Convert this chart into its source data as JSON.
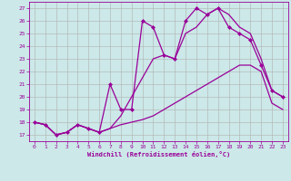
{
  "background_color": "#cce8e8",
  "grid_color": "#b0b0b0",
  "line_color": "#990099",
  "xlabel": "Windchill (Refroidissement éolien,°C)",
  "xlim_min": -0.5,
  "xlim_max": 23.5,
  "ylim_min": 16.5,
  "ylim_max": 27.5,
  "yticks": [
    17,
    18,
    19,
    20,
    21,
    22,
    23,
    24,
    25,
    26,
    27
  ],
  "xticks": [
    0,
    1,
    2,
    3,
    4,
    5,
    6,
    7,
    8,
    9,
    10,
    11,
    12,
    13,
    14,
    15,
    16,
    17,
    18,
    19,
    20,
    21,
    22,
    23
  ],
  "series": [
    {
      "x": [
        0,
        1,
        2,
        3,
        4,
        5,
        6,
        7,
        8,
        9,
        10,
        11,
        12,
        13,
        14,
        15,
        16,
        17,
        18,
        19,
        20,
        21,
        22,
        23
      ],
      "y": [
        18.0,
        17.8,
        17.0,
        17.2,
        17.8,
        17.5,
        17.2,
        17.5,
        17.8,
        18.0,
        18.2,
        18.5,
        19.0,
        19.5,
        20.0,
        20.5,
        21.0,
        21.5,
        22.0,
        22.5,
        22.5,
        22.0,
        19.5,
        19.0
      ],
      "marker": null,
      "linewidth": 0.9
    },
    {
      "x": [
        0,
        1,
        2,
        3,
        4,
        5,
        6,
        7,
        8,
        9,
        10,
        11,
        12,
        13,
        14,
        15,
        16,
        17,
        18,
        19,
        20,
        21,
        22,
        23
      ],
      "y": [
        18.0,
        17.8,
        17.0,
        17.2,
        17.8,
        17.5,
        17.2,
        17.5,
        18.5,
        20.0,
        21.5,
        23.0,
        23.3,
        23.0,
        25.0,
        25.5,
        26.5,
        27.0,
        26.5,
        25.5,
        25.0,
        23.0,
        20.5,
        20.0
      ],
      "marker": null,
      "linewidth": 0.9
    },
    {
      "x": [
        0,
        1,
        2,
        3,
        4,
        5,
        6,
        7,
        8,
        9,
        10,
        11,
        12,
        13,
        14,
        15,
        16,
        17,
        18,
        19,
        20,
        21,
        22,
        23
      ],
      "y": [
        18.0,
        17.8,
        17.0,
        17.2,
        17.8,
        17.5,
        17.2,
        21.0,
        19.0,
        19.0,
        26.0,
        25.5,
        23.3,
        23.0,
        26.0,
        27.0,
        26.5,
        27.0,
        25.5,
        25.0,
        24.5,
        22.5,
        20.5,
        20.0
      ],
      "marker": "D",
      "markersize": 2.0,
      "linewidth": 0.9
    }
  ]
}
